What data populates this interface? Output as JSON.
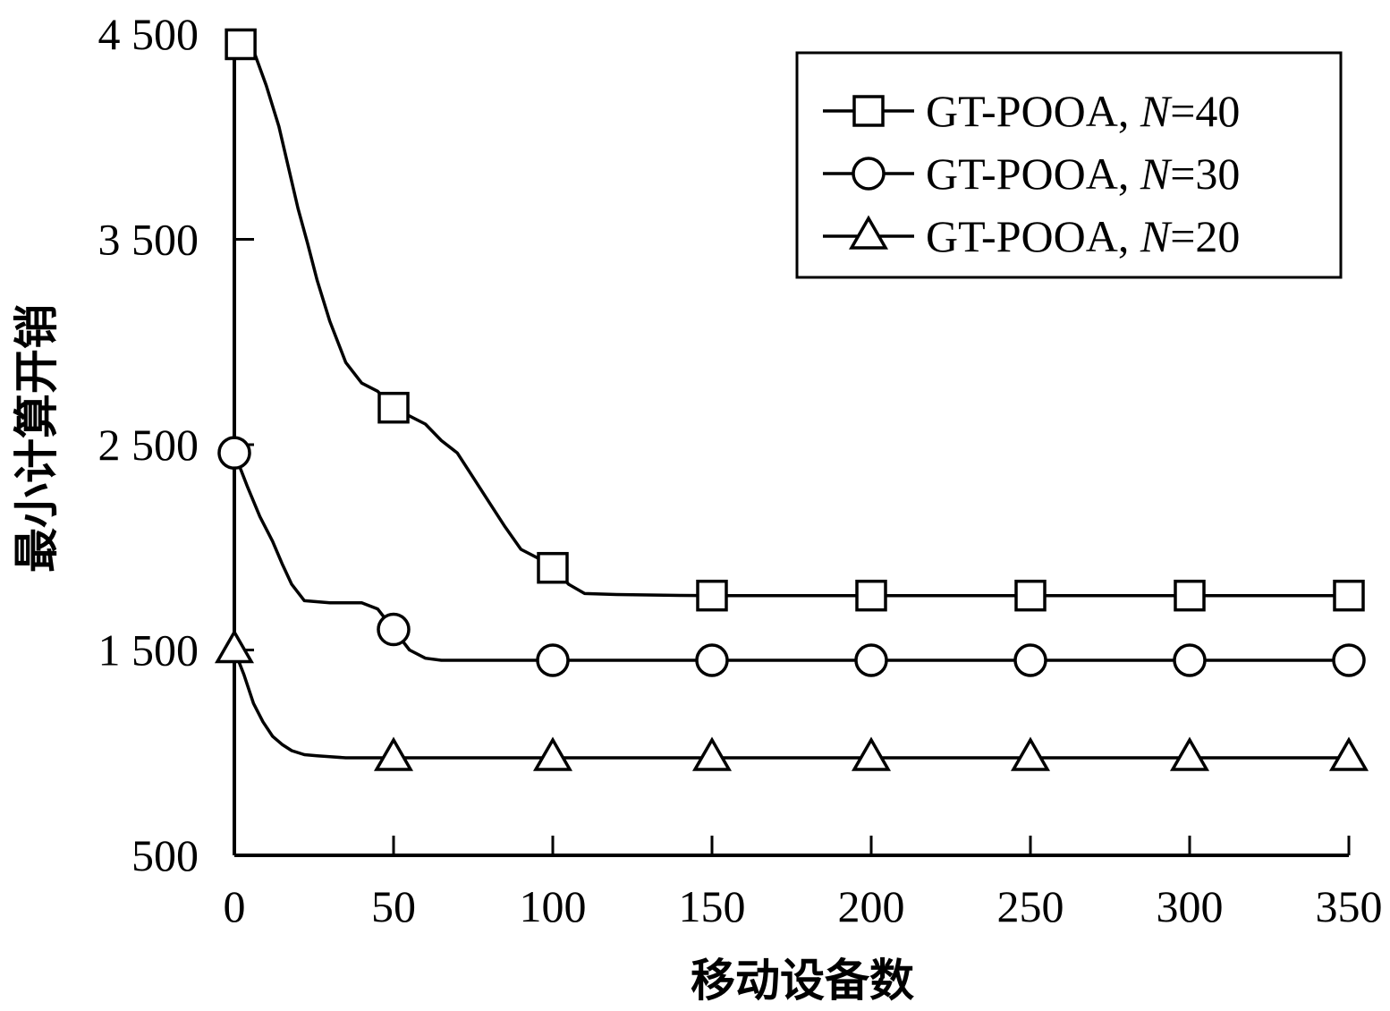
{
  "chart_data": {
    "type": "line",
    "title": "",
    "xlabel": "移动设备数",
    "ylabel": "最小计算开销",
    "xlim": [
      0,
      350
    ],
    "ylim": [
      500,
      4500
    ],
    "x_ticks": [
      0,
      50,
      100,
      150,
      200,
      250,
      300,
      350
    ],
    "x_tick_labels": [
      "0",
      "50",
      "100",
      "150",
      "200",
      "250",
      "300",
      "350"
    ],
    "y_ticks": [
      500,
      1500,
      2500,
      3500,
      4500
    ],
    "y_tick_labels": [
      "500",
      "1 500",
      "2 500",
      "3 500",
      "4 500"
    ],
    "grid": false,
    "legend_position": "top-right",
    "series": [
      {
        "name": "GT-POOA, N=40",
        "legend_prefix": "GT-POOA, ",
        "legend_var": "N",
        "legend_suffix": "=40",
        "marker": "square",
        "x": [
          2,
          6,
          10,
          14,
          17,
          20,
          23,
          26,
          30,
          35,
          40,
          45,
          50,
          55,
          60,
          65,
          70,
          75,
          80,
          85,
          90,
          95,
          100,
          105,
          110,
          120,
          130,
          140,
          150,
          200,
          250,
          300,
          350
        ],
        "y": [
          4450,
          4420,
          4250,
          4050,
          3850,
          3650,
          3480,
          3300,
          3100,
          2900,
          2800,
          2760,
          2680,
          2640,
          2600,
          2520,
          2460,
          2340,
          2220,
          2100,
          1990,
          1950,
          1900,
          1820,
          1775,
          1770,
          1768,
          1766,
          1765,
          1765,
          1765,
          1765,
          1765
        ]
      },
      {
        "name": "GT-POOA, N=30",
        "legend_prefix": "GT-POOA, ",
        "legend_var": "N",
        "legend_suffix": "=30",
        "marker": "circle",
        "x": [
          0,
          4,
          8,
          12,
          15,
          18,
          22,
          30,
          40,
          45,
          50,
          55,
          60,
          65,
          70,
          80,
          100,
          150,
          200,
          250,
          300,
          350
        ],
        "y": [
          2460,
          2300,
          2150,
          2030,
          1920,
          1820,
          1740,
          1730,
          1730,
          1700,
          1600,
          1500,
          1460,
          1450,
          1450,
          1450,
          1450,
          1450,
          1450,
          1450,
          1450,
          1450
        ]
      },
      {
        "name": "GT-POOA, N=20",
        "legend_prefix": "GT-POOA, ",
        "legend_var": "N",
        "legend_suffix": "=20",
        "marker": "triangle",
        "x": [
          0,
          3,
          6,
          9,
          12,
          15,
          18,
          22,
          26,
          30,
          35,
          50,
          100,
          150,
          200,
          250,
          300,
          350
        ],
        "y": [
          1500,
          1380,
          1240,
          1150,
          1080,
          1040,
          1010,
          990,
          985,
          980,
          975,
          975,
          975,
          975,
          975,
          975,
          975,
          975
        ]
      }
    ]
  }
}
